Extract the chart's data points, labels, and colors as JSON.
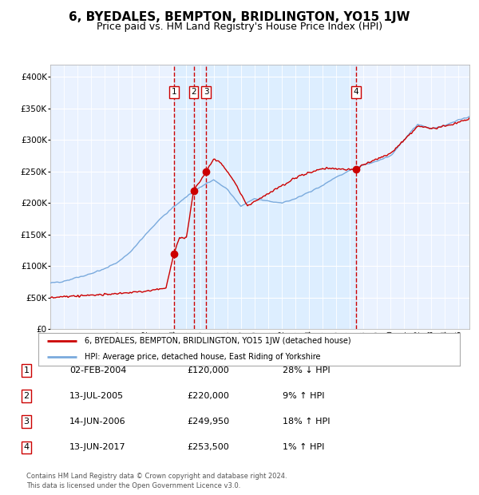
{
  "title": "6, BYEDALES, BEMPTON, BRIDLINGTON, YO15 1JW",
  "subtitle": "Price paid vs. HM Land Registry's House Price Index (HPI)",
  "ylim": [
    0,
    420000
  ],
  "yticks": [
    0,
    50000,
    100000,
    150000,
    200000,
    250000,
    300000,
    350000,
    400000
  ],
  "ytick_labels": [
    "£0",
    "£50K",
    "£100K",
    "£150K",
    "£200K",
    "£250K",
    "£300K",
    "£350K",
    "£400K"
  ],
  "xlim_start": 1995.0,
  "xlim_end": 2025.8,
  "sale_dates": [
    2004.085,
    2005.535,
    2006.45,
    2017.45
  ],
  "sale_prices": [
    120000,
    220000,
    249950,
    253500
  ],
  "sale_labels": [
    "1",
    "2",
    "3",
    "4"
  ],
  "hpi_color": "#7aaadd",
  "sale_color": "#cc0000",
  "vline_color": "#cc0000",
  "shade_color": "#ddeeff",
  "plot_bg_color": "#eaf2ff",
  "grid_color": "#ffffff",
  "legend_house_label": "6, BYEDALES, BEMPTON, BRIDLINGTON, YO15 1JW (detached house)",
  "legend_hpi_label": "HPI: Average price, detached house, East Riding of Yorkshire",
  "table_data": [
    [
      "1",
      "02-FEB-2004",
      "£120,000",
      "28% ↓ HPI"
    ],
    [
      "2",
      "13-JUL-2005",
      "£220,000",
      "9% ↑ HPI"
    ],
    [
      "3",
      "14-JUN-2006",
      "£249,950",
      "18% ↑ HPI"
    ],
    [
      "4",
      "13-JUN-2017",
      "£253,500",
      "1% ↑ HPI"
    ]
  ],
  "footnote": "Contains HM Land Registry data © Crown copyright and database right 2024.\nThis data is licensed under the Open Government Licence v3.0.",
  "background_color": "#ffffff",
  "title_fontsize": 11,
  "subtitle_fontsize": 9
}
